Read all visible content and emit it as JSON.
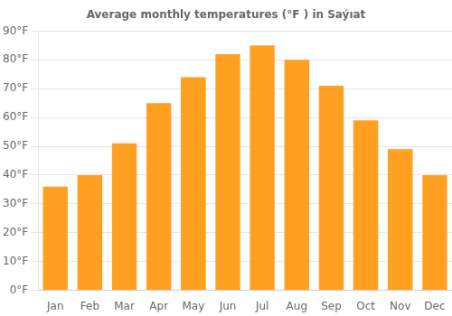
{
  "chart_data": {
    "type": "bar",
    "title": "Average monthly temperatures (°F ) in Saýıat",
    "categories": [
      "Jan",
      "Feb",
      "Mar",
      "Apr",
      "May",
      "Jun",
      "Jul",
      "Aug",
      "Sep",
      "Oct",
      "Nov",
      "Dec"
    ],
    "values": [
      36,
      40,
      51,
      65,
      74,
      82,
      85,
      80,
      71,
      59,
      49,
      40
    ],
    "color": "#FFA020",
    "ylim": [
      0,
      90
    ],
    "yticks": [
      {
        "value": 0,
        "label": "0°F"
      },
      {
        "value": 10,
        "label": "10°F"
      },
      {
        "value": 20,
        "label": "20°F"
      },
      {
        "value": 30,
        "label": "30°F"
      },
      {
        "value": 40,
        "label": "40°F"
      },
      {
        "value": 50,
        "label": "50°F"
      },
      {
        "value": 60,
        "label": "60°F"
      },
      {
        "value": 70,
        "label": "70°F"
      },
      {
        "value": 80,
        "label": "80°F"
      },
      {
        "value": 90,
        "label": "90°F"
      }
    ],
    "grid": true
  }
}
